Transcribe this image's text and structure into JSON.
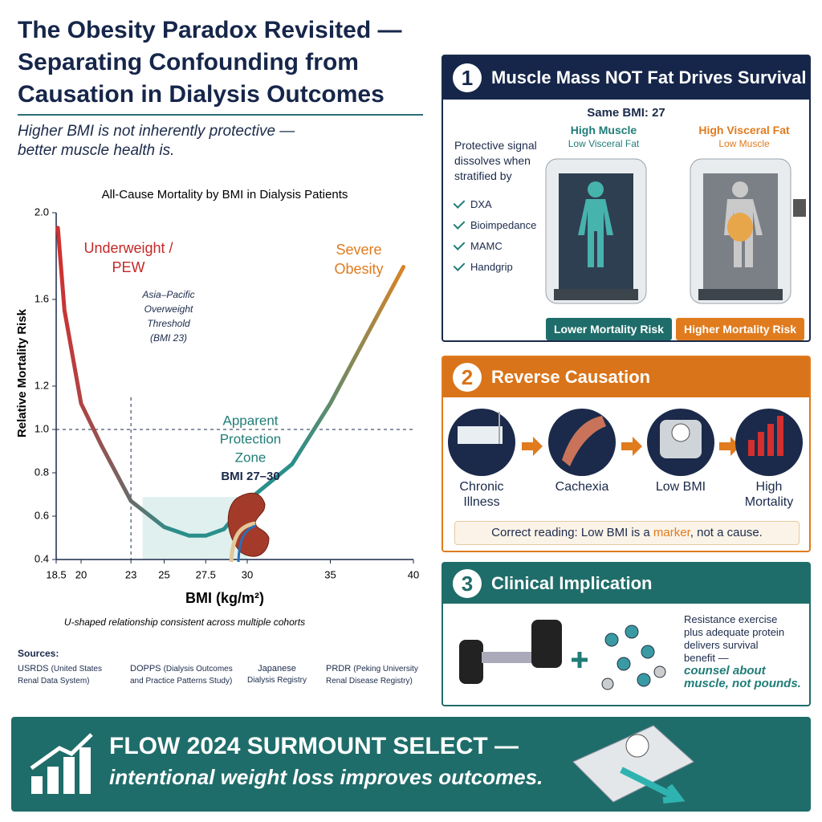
{
  "header": {
    "title_lines": [
      "The Obesity Paradox Revisited —",
      "Separating Confounding from",
      "Causation in Dialysis Outcomes"
    ],
    "subtitle_lines": [
      "Higher BMI is not inherently protective —",
      "better muscle health is."
    ]
  },
  "chart_data": {
    "type": "line",
    "title": "All-Cause Mortality by BMI in Dialysis Patients",
    "x_label": "BMI (kg/m²)",
    "y_label": "Relative Mortality Risk",
    "caption": "U-shaped relationship consistent across multiple cohorts",
    "x": [
      18.6,
      19,
      20,
      21.2,
      23,
      25,
      26.5,
      27.5,
      28.6,
      30,
      32.7,
      35,
      37.3,
      39.4
    ],
    "values": [
      1.93,
      1.55,
      1.12,
      0.93,
      0.67,
      0.55,
      0.51,
      0.51,
      0.54,
      0.67,
      0.84,
      1.12,
      1.45,
      1.75
    ],
    "colors": [
      "#d32f2f",
      "#2a8f8c",
      "#2a8f8c",
      "#e8821e"
    ],
    "xlim": [
      18.5,
      40
    ],
    "xticks": [
      18.5,
      20,
      23,
      25,
      27.5,
      30,
      35,
      40
    ],
    "ylim": [
      0.4,
      2.0
    ],
    "yticks": [
      0.4,
      0.6,
      0.8,
      {
        "value": 1,
        "label": "1.0"
      },
      1.2,
      1.6,
      {
        "value": 2,
        "label": "2.0"
      }
    ],
    "hline": 1,
    "vline": 23,
    "shaded_x": [
      23.7,
      30
    ],
    "annotations": [
      {
        "lines": [
          "Underweight /",
          "PEW"
        ],
        "color": "#c62828"
      },
      {
        "lines": [
          "Severe",
          "Obesity"
        ],
        "color": "#e07b1e"
      },
      {
        "lines": [
          "Asia–Pacific",
          "Overweight",
          "Threshold",
          "(BMI 23)"
        ],
        "color": "#1b2a4a"
      },
      {
        "lines": [
          "Apparent",
          "Protection",
          "Zone",
          "BMI 27–30"
        ],
        "color": "#1f7d78"
      }
    ]
  },
  "sources": {
    "heading": "Sources:",
    "items": [
      {
        "name": "USRDS",
        "detail": "(United States Renal Data System)"
      },
      {
        "name": "DOPPS",
        "detail": "(Dialysis Outcomes and Practice Patterns Study)"
      },
      {
        "name": "Japanese",
        "detail": "Dialysis Registry"
      },
      {
        "name": "PRDR",
        "detail": "(Peking University Renal Disease Registry)"
      }
    ]
  },
  "panel1": {
    "number": "1",
    "title": "Muscle Mass NOT Fat Drives Survival",
    "same_bmi": "Same BMI: 27",
    "intro_lines": [
      "Protective signal",
      "dissolves when",
      "stratified by"
    ],
    "methods": [
      "DXA",
      "Bioimpedance",
      "MAMC",
      "Handgrip"
    ],
    "left": {
      "title": "High Muscle",
      "subtitle": "Low Visceral Fat",
      "badge": "Lower Mortality Risk"
    },
    "right": {
      "title": "High Visceral Fat",
      "subtitle": "Low Muscle",
      "badge": "Higher Mortality Risk"
    }
  },
  "panel2": {
    "number": "2",
    "title": "Reverse Causation",
    "steps": [
      [
        "Chronic",
        "Illness"
      ],
      [
        "Cachexia"
      ],
      [
        "Low BMI"
      ],
      [
        "High",
        "Mortality"
      ]
    ],
    "note": {
      "before": "Correct reading: Low BMI is a ",
      "emphasis": "marker",
      "after": ", not a cause."
    }
  },
  "panel3": {
    "number": "3",
    "title": "Clinical Implication",
    "text_lines": [
      "Resistance exercise",
      "plus adequate protein",
      "delivers survival",
      "benefit —"
    ],
    "emphasis_lines": [
      "counsel about",
      "muscle, not pounds."
    ]
  },
  "footer": {
    "title": "FLOW 2024 SURMOUNT SELECT —",
    "subtitle": "intentional weight loss improves outcomes."
  }
}
